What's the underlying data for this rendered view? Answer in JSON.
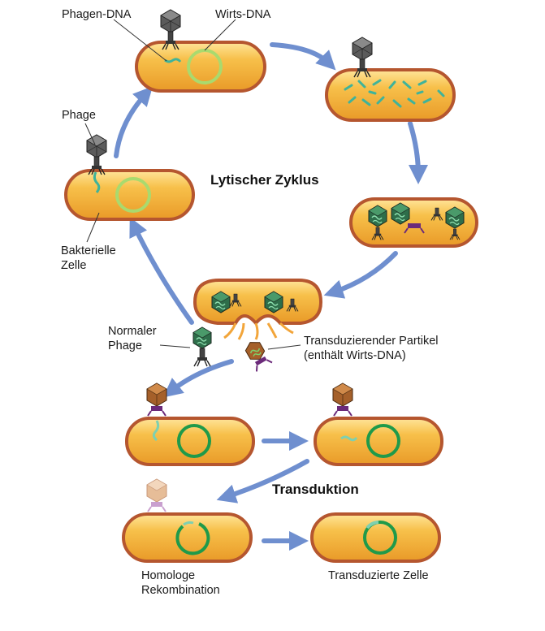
{
  "labels": {
    "phage_dna": "Phagen-DNA",
    "host_dna": "Wirts-DNA",
    "phage": "Phage",
    "bacterial_cell_line1": "Bakterielle",
    "bacterial_cell_line2": "Zelle",
    "lytic_cycle": "Lytischer Zyklus",
    "normal_phage_line1": "Normaler",
    "normal_phage_line2": "Phage",
    "transducing_particle_line1": "Transduzierender Partikel",
    "transducing_particle_line2": "(enthält Wirts-DNA)",
    "transduction": "Transduktion",
    "homologous_recombination_line1": "Homologe",
    "homologous_recombination_line2": "Rekombination",
    "transduced_cell": "Transduzierte Zelle"
  },
  "colors": {
    "cell_fill": "#f5b63c",
    "cell_border": "#b5562f",
    "cell_highlight": "#ffe08a",
    "dna_green": "#9ed26a",
    "dna_dark_green": "#1f9a4a",
    "phage_dna": "#3fb39a",
    "capsid_gray": "#5a5a5a",
    "capsid_green": "#2e7d52",
    "capsid_brown": "#a8642e",
    "capsid_pale": "#e9c2a0",
    "collar_purple": "#6b2a7a",
    "arrow_blue": "#6f8fcf"
  }
}
